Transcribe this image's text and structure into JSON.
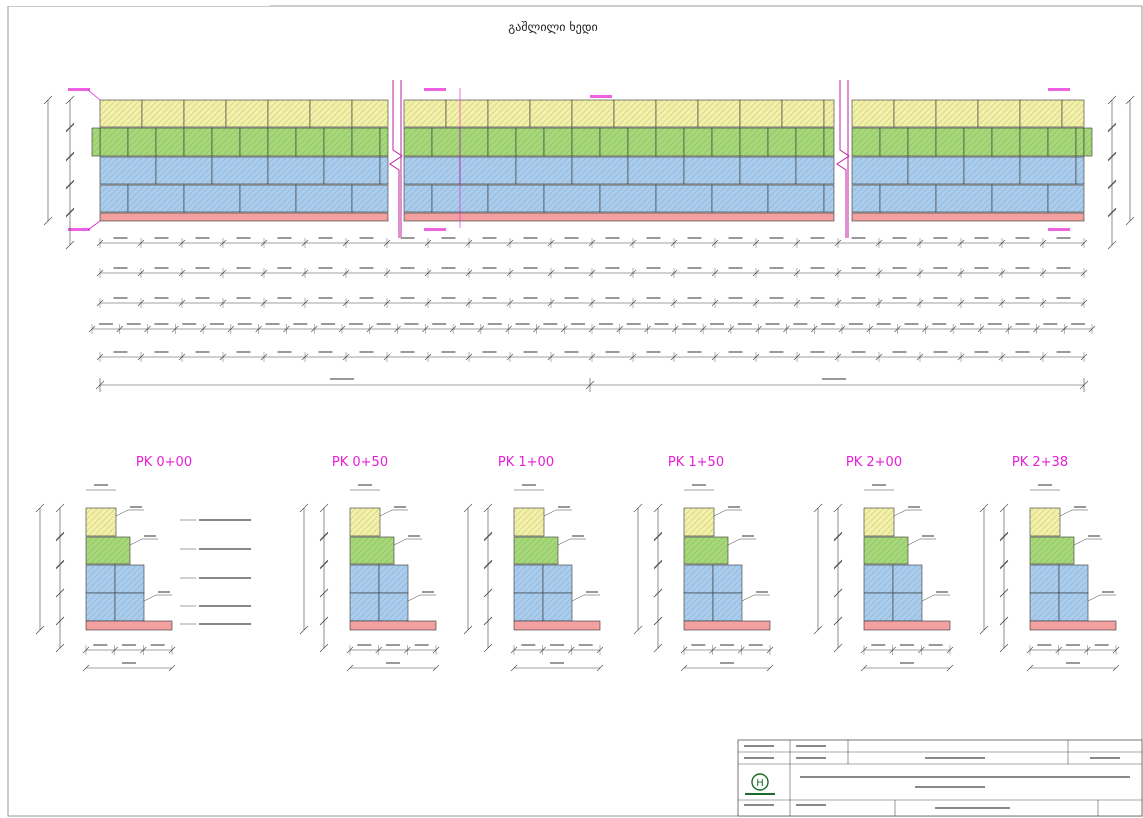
{
  "drawing": {
    "title": "გაშლილი ხედი",
    "colors": {
      "top_course": "#f3f1a6",
      "second_course": "#a5d977",
      "lower_courses": "#a9cdef",
      "foundation": "#f2a0a0",
      "annotation": "#e51fd7",
      "grid_line": "#333333"
    },
    "sections": [
      {
        "id": "pk-0-00",
        "label": "PK 0+00"
      },
      {
        "id": "pk-0-50",
        "label": "PK 0+50"
      },
      {
        "id": "pk-1-00",
        "label": "PK 1+00"
      },
      {
        "id": "pk-1-50",
        "label": "PK 1+50"
      },
      {
        "id": "pk-2-00",
        "label": "PK 2+00"
      },
      {
        "id": "pk-2-38",
        "label": "PK 2+38"
      }
    ]
  },
  "title_block": {
    "logo_letter": "Н"
  }
}
